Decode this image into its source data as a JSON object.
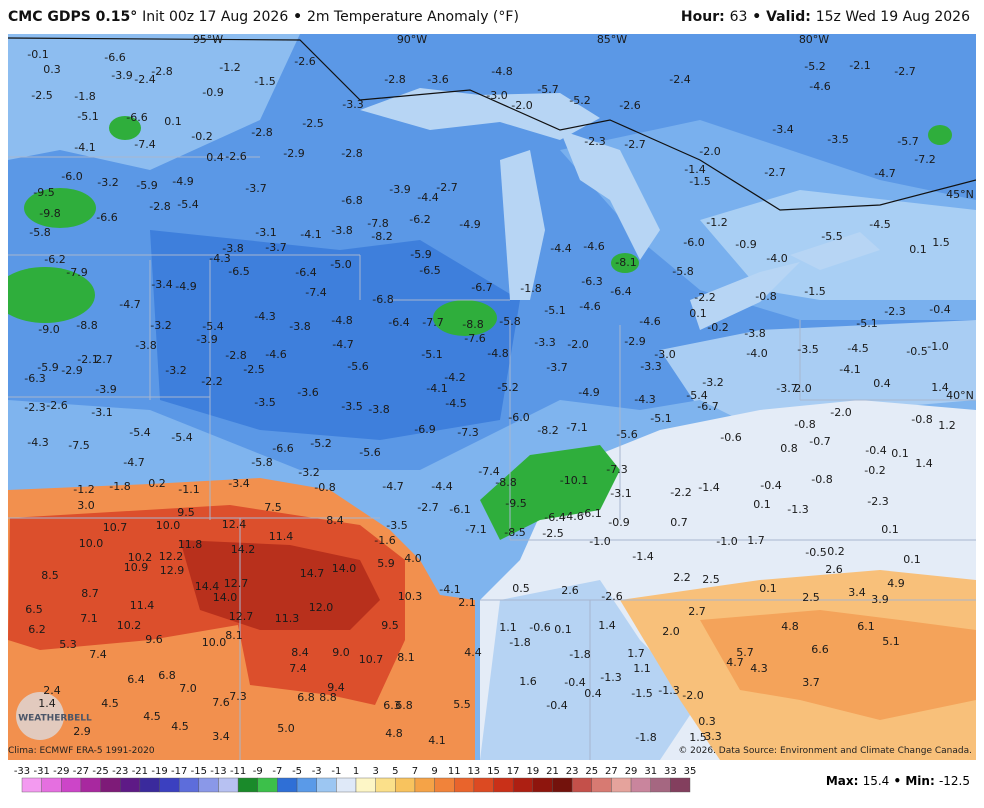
{
  "header": {
    "model": "CMC GDPS 0.15°",
    "init": "Init 00z 17 Aug 2026",
    "separator": "•",
    "product": "2m Temperature Anomaly (°F)",
    "hour_label": "Hour:",
    "hour": 63,
    "valid_label": "Valid:",
    "valid": "15z Wed 19 Aug 2026"
  },
  "map": {
    "longitude_labels": [
      "95°W",
      "90°W",
      "85°W",
      "80°W"
    ],
    "latitude_labels": [
      "45°N",
      "40°N"
    ],
    "logo": "WEATHERBELL",
    "values": [
      -0.1,
      0.3,
      -6.6,
      -3.9,
      -2.4,
      -2.8,
      -1.2,
      -2.6,
      -1.5,
      -0.9,
      -2.5,
      -1.8,
      -5.1,
      -6.6,
      0.1,
      -0.2,
      -2.8,
      -4.1,
      -7.4,
      0.4,
      -2.6,
      -2.9,
      -2.8,
      -2.5,
      -3.3,
      -2.8,
      -3.6,
      -4.8,
      {
        "value": -3,
        "label": "-3.0"
      },
      {
        "value": -2,
        "label": "-2.0"
      },
      -5.7,
      -5.2,
      -2.6,
      -2.4,
      -5.2,
      -2.1,
      -2.7,
      -4.6,
      -3.4,
      -3.5,
      -5.7,
      -7.2,
      -4.7,
      -2.7,
      -1.4,
      -1.5,
      -2.3,
      -2.7,
      {
        "value": -2,
        "label": "-2.0"
      },
      {
        "value": -6,
        "label": "-6.0"
      },
      -3.2,
      -5.9,
      -4.9,
      -9.5,
      -9.8,
      -6.6,
      -2.8,
      -5.4,
      -3.7,
      -6.8,
      -3.9,
      -4.4,
      -2.7,
      -7.8,
      -8.2,
      -6.2,
      -4.9,
      -5.8,
      -3.1,
      -4.1,
      -3.8,
      -3.8,
      -3.7,
      -5.9,
      -6.5,
      -8.1,
      -5.8,
      {
        "value": -6,
        "label": "-6.0"
      },
      -4.4,
      -4.6,
      -6.3,
      -6.4,
      -1.2,
      -0.9,
      {
        "value": -4,
        "label": "-4.0"
      },
      -5.5,
      -4.5,
      0.1,
      1.5,
      -6.2,
      -7.9,
      -4.3,
      -6.5,
      -6.4,
      {
        "value": -5,
        "label": "-5.0"
      },
      -7.4,
      -6.8,
      -6.7,
      -1.8,
      -5.1,
      -4.6,
      -4.6,
      -2.2,
      -0.8,
      -1.5,
      {
        "value": -9,
        "label": "-9.0"
      },
      -8.8,
      -4.7,
      -3.4,
      -4.9,
      -3.2,
      -5.4,
      -4.3,
      -3.8,
      -4.8,
      -6.4,
      -7.7,
      -8.8,
      -7.6,
      -5.8,
      0.1,
      -0.2,
      -3.8,
      -5.1,
      -2.3,
      -0.4,
      -3.5,
      -4.5,
      -0.5,
      {
        "value": -1,
        "label": "-1.0"
      },
      -4.1,
      0.4,
      1.4,
      -3.9,
      -3.8,
      -2.8,
      -4.6,
      -4.7,
      -5.1,
      -4.8,
      -3.3,
      {
        "value": -2,
        "label": "-2.0"
      },
      -2.9,
      {
        "value": -3,
        "label": "-3.0"
      },
      {
        "value": -4,
        "label": "-4.0"
      },
      -2.1,
      2.7,
      -5.9,
      -2.9,
      -6.3,
      -3.2,
      -2.2,
      -2.5,
      -5.6,
      -4.2,
      -4.1,
      -5.2,
      -3.7,
      -3.3,
      -3.2,
      -4.9,
      -3.9,
      -3.6,
      -2.3,
      -2.6,
      -3.1,
      -3.5,
      -3.5,
      -3.8,
      -4.5,
      {
        "value": -6,
        "label": "-6.0"
      },
      -4.3,
      -5.4,
      -6.7,
      -3.7,
      {
        "value": 2,
        "label": "2.0"
      },
      -5.1,
      {
        "value": -2,
        "label": "-2.0"
      },
      -0.8,
      1.2,
      -4.3,
      -7.5,
      -5.4,
      -5.4,
      -5.8,
      -6.6,
      -5.2,
      -5.6,
      -6.9,
      -7.3,
      -8.2,
      -7.1,
      -5.6,
      -0.6,
      -0.8,
      -0.7,
      0.8,
      -0.4,
      0.1,
      -4.7,
      -0.2,
      1.4,
      -3.2,
      -0.8,
      -7.4,
      -8.8,
      -9.5,
      -10.1,
      -7.3,
      -3.1,
      -2.2,
      -1.4,
      -0.4,
      -0.8,
      -1.2,
      -1.8,
      0.2,
      -1.1,
      -3.4,
      -4.7,
      -4.4,
      -2.3,
      -1.3,
      0.1,
      {
        "value": 3,
        "label": "3.0"
      },
      7.5,
      9.5,
      10.7,
      {
        "value": 10,
        "label": "10.0"
      },
      12.4,
      11.4,
      8.4,
      -3.5,
      -6.1,
      -2.7,
      -6.4,
      -4.6,
      -6.1,
      -0.9,
      0.7,
      {
        "value": 10,
        "label": "10.0"
      },
      11.8,
      14.2,
      12.2,
      10.2,
      10.9,
      12.9,
      14.7,
      {
        "value": 14,
        "label": "14.0"
      },
      5.9,
      {
        "value": 4,
        "label": "4.0"
      },
      -1.6,
      -7.1,
      -8.5,
      -2.5,
      {
        "value": -1,
        "label": "-1.0"
      },
      {
        "value": -1,
        "label": "-1.0"
      },
      1.7,
      0.1,
      -0.5,
      0.2,
      0.1,
      2.6,
      8.5,
      14.4,
      12.7,
      {
        "value": 14,
        "label": "14.0"
      },
      -1.4,
      0.5,
      2.6,
      -4.1,
      2.2,
      2.5,
      0.1,
      4.9,
      3.4,
      3.9,
      8.7,
      11.4,
      10.3,
      2.1,
      -2.6,
      2.5,
      6.5,
      7.1,
      12.7,
      {
        "value": 12,
        "label": "12.0"
      },
      11.3,
      2.7,
      6.2,
      10.2,
      8.1,
      9.5,
      1.1,
      -0.6,
      0.1,
      1.4,
      {
        "value": 2,
        "label": "2.0"
      },
      4.8,
      6.1,
      5.3,
      9.6,
      {
        "value": 10,
        "label": "10.0"
      },
      -1.8,
      5.7,
      5.1,
      7.4,
      8.4,
      {
        "value": 9,
        "label": "9.0"
      },
      10.7,
      8.1,
      4.4,
      -1.8,
      1.7,
      6.6,
      4.7,
      4.3,
      1.1,
      6.4,
      6.8,
      7.4,
      1.6,
      -0.4,
      -1.3,
      3.7,
      2.4,
      {
        "value": 7,
        "label": "7.0"
      },
      9.4,
      0.4,
      -1.5,
      -1.3,
      {
        "value": -2,
        "label": "-2.0"
      },
      1.4,
      4.5,
      7.3,
      7.6,
      6.8,
      8.8,
      6.3,
      6.8,
      5.5,
      -0.4,
      4.5,
      2.9,
      4.5,
      {
        "value": 5,
        "label": "5.0"
      },
      0.3,
      3.4,
      4.8,
      4.1,
      -1.8,
      1.5,
      3.3
    ]
  },
  "footer": {
    "climo": "Clima: ECMWF ERA-5 1991-2020",
    "credit": "© 2026. Data Source: Environment and Climate Change Canada.",
    "max_label": "Max:",
    "max": 15.4,
    "min_label": "Min:",
    "min": -12.5
  },
  "colorbar": {
    "ticks": [
      -33,
      -31,
      -29,
      -27,
      -25,
      -23,
      -21,
      -19,
      -17,
      -15,
      -13,
      -11,
      -9,
      -7,
      -5,
      -3,
      -1,
      1,
      3,
      5,
      7,
      9,
      11,
      13,
      15,
      17,
      19,
      21,
      23,
      25,
      27,
      29,
      31,
      33,
      35
    ],
    "colors": [
      "#f39af0",
      "#e56fe0",
      "#cc45c8",
      "#a8289f",
      "#7e1b78",
      "#5e1a86",
      "#3a2a9c",
      "#3b40c0",
      "#5d6ddb",
      "#8a98e8",
      "#b7c1f2",
      "#1a8a2a",
      "#3cc04a",
      "#2f6fd6",
      "#5a9ae8",
      "#9cc6f2",
      "#dfe9f8",
      "#fdf6c6",
      "#fbe08a",
      "#f8c35e",
      "#f5a347",
      "#f1833a",
      "#e9642c",
      "#dc4a22",
      "#c93018",
      "#ad1f12",
      "#8e150d",
      "#73120c",
      "#c4504a",
      "#d77a72",
      "#e5a39c",
      "#c9859d",
      "#a56781",
      "#833f5e"
    ]
  }
}
